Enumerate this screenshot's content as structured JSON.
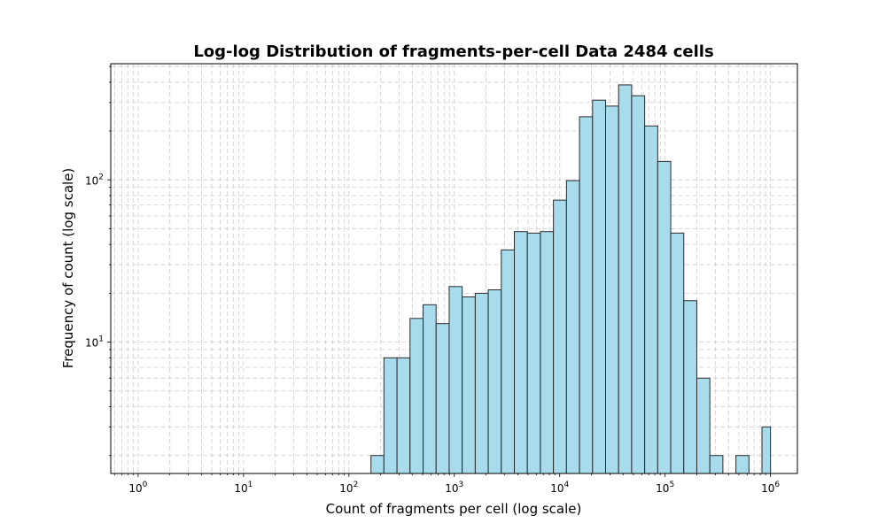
{
  "chart_data": {
    "type": "bar",
    "title": "Log-log Distribution of fragments-per-cell Data 2484 cells",
    "xlabel": "Count of fragments per cell (log scale)",
    "ylabel": "Frequency of count (log scale)",
    "x_scale": "log",
    "y_scale": "log",
    "xlim": [
      0.55,
      1800000
    ],
    "ylim": [
      1.55,
      520
    ],
    "grid": true,
    "x_ticks": [
      {
        "value": 1,
        "base": "10",
        "exp": "0"
      },
      {
        "value": 10,
        "base": "10",
        "exp": "1"
      },
      {
        "value": 100,
        "base": "10",
        "exp": "2"
      },
      {
        "value": 1000,
        "base": "10",
        "exp": "3"
      },
      {
        "value": 10000,
        "base": "10",
        "exp": "4"
      },
      {
        "value": 100000,
        "base": "10",
        "exp": "5"
      },
      {
        "value": 1000000,
        "base": "10",
        "exp": "6"
      }
    ],
    "y_ticks": [
      {
        "value": 10,
        "base": "10",
        "exp": "1"
      },
      {
        "value": 100,
        "base": "10",
        "exp": "2"
      }
    ],
    "bin_edges": [
      162,
      215,
      286,
      380,
      506,
      672,
      894,
      1188,
      1580,
      2100,
      2792,
      3712,
      4935,
      6560,
      8722,
      11595,
      15416,
      20494,
      27245,
      36220,
      48152,
      64016,
      85104,
      113140,
      150410,
      199960,
      265830,
      353400,
      469830,
      624600,
      830350,
      1000000
    ],
    "values": [
      2,
      8,
      8,
      14,
      17,
      13,
      22,
      19,
      20,
      21,
      37,
      48,
      47,
      48,
      75,
      99,
      245,
      310,
      285,
      385,
      330,
      215,
      130,
      47,
      18,
      6,
      2,
      0,
      2,
      0,
      3
    ],
    "bar_color": "#a8dcec",
    "edge_color": "#2a2a2a"
  }
}
